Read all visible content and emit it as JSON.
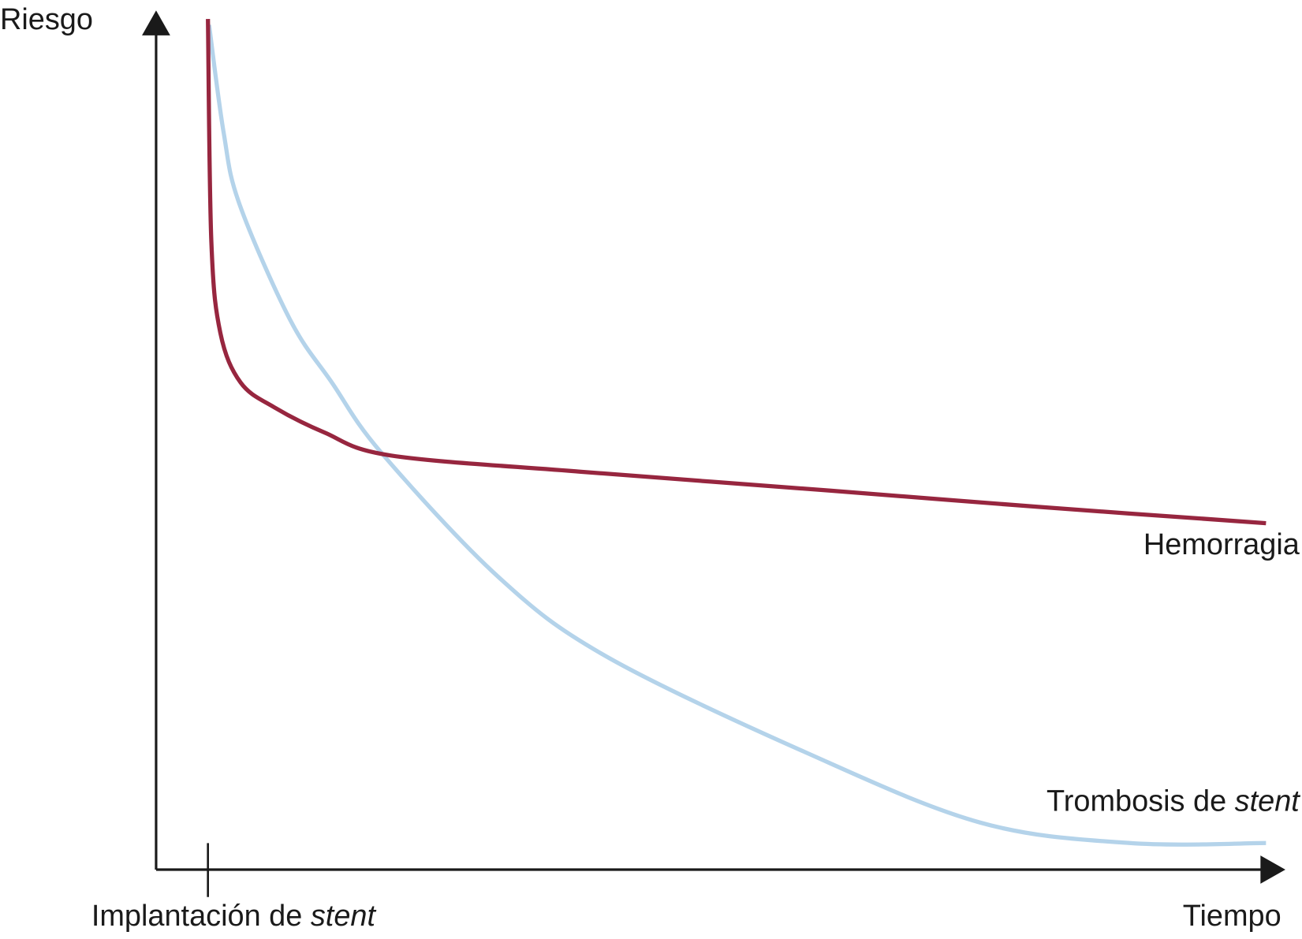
{
  "chart_data": {
    "type": "line",
    "y_label": "Riesgo",
    "x_label": "Tiempo",
    "xlim": [
      0,
      100
    ],
    "ylim": [
      0,
      100
    ],
    "grid": false,
    "marker": {
      "x": 4.6,
      "label": [
        {
          "text": "Implantación de "
        },
        {
          "text": "stent",
          "style": "italic"
        }
      ]
    },
    "series": [
      {
        "name": "Hemorragia",
        "color": "#97263f",
        "x": [
          4.6,
          4.9,
          5.7,
          7.5,
          10.5,
          14.9,
          20.8,
          37.7,
          59.8,
          78.3,
          98.5
        ],
        "values": [
          99.2,
          73.3,
          62.6,
          56.8,
          53.9,
          51.0,
          48.3,
          46.4,
          44.2,
          42.3,
          40.4
        ]
      },
      {
        "name": [
          {
            "text": "Trombosis de "
          },
          {
            "text": "stent",
            "style": "italic"
          }
        ],
        "color": "#b4d3ea",
        "x": [
          4.7,
          6.0,
          7.4,
          11.9,
          15.6,
          20.0,
          30.4,
          39.9,
          57.6,
          73.1,
          86.4,
          98.5
        ],
        "values": [
          98.5,
          85.9,
          77.6,
          64.1,
          56.8,
          48.6,
          34.1,
          24.9,
          13.7,
          5.5,
          3.1,
          3.1
        ]
      }
    ]
  }
}
